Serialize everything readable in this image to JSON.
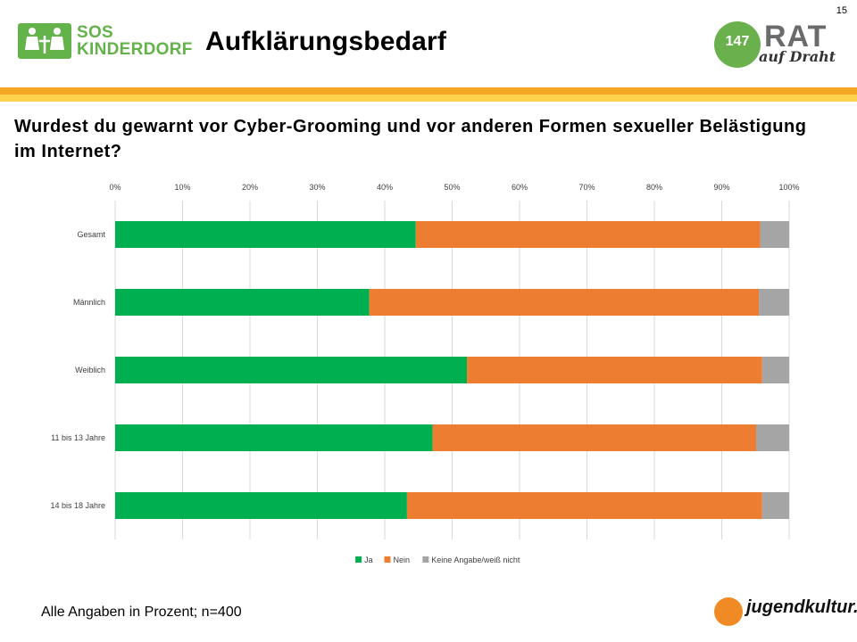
{
  "page_number": "15",
  "header": {
    "title": "Aufklärungsbedarf",
    "sos_logo_line1": "SOS",
    "sos_logo_line2": "KINDERDORF",
    "rat_logo_number": "147",
    "rat_logo_text": "RAT",
    "rat_logo_subtext": "auf Draht"
  },
  "question": "Wurdest du gewarnt vor Cyber-Grooming und vor anderen Formen sexueller Belästigung im Internet?",
  "footnote": "Alle Angaben in Prozent; n=400",
  "footer_logo": "jugendkultur.at",
  "colors": {
    "ja": "#00b050",
    "nein": "#ed7d31",
    "keine": "#a5a5a5",
    "stripe_orange": "#f5a623",
    "stripe_yellow": "#ffd24d"
  },
  "chart_data": {
    "type": "bar",
    "orientation": "horizontal",
    "stacked": "percent",
    "title": "",
    "categories": [
      "Gesamt",
      "Männlich",
      "Weiblich",
      "11 bis 13 Jahre",
      "14 bis 18 Jahre"
    ],
    "series": [
      {
        "name": "Ja",
        "values": [
          44.6,
          37.7,
          52.2,
          47.1,
          43.3
        ]
      },
      {
        "name": "Nein",
        "values": [
          51.1,
          57.8,
          43.8,
          48.0,
          52.7
        ]
      },
      {
        "name": "Keine Angabe/weiß nicht",
        "values": [
          4.3,
          4.5,
          4.0,
          4.9,
          4.0
        ]
      }
    ],
    "xlim": [
      0,
      100
    ],
    "x_ticks": [
      "0%",
      "10%",
      "20%",
      "30%",
      "40%",
      "50%",
      "60%",
      "70%",
      "80%",
      "90%",
      "100%"
    ],
    "grid": true,
    "legend": "bottom"
  }
}
